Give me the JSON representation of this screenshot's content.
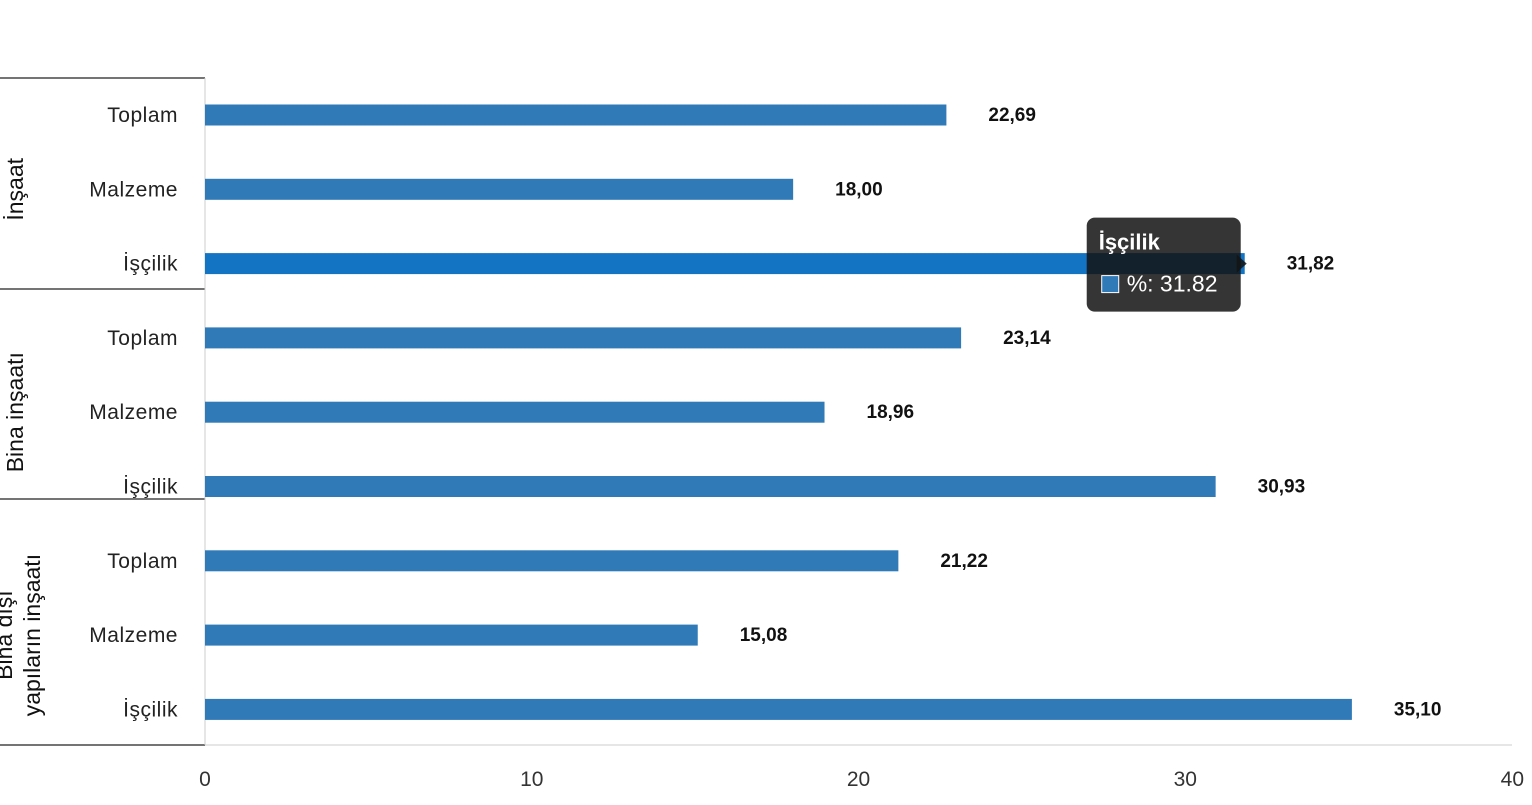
{
  "chart_data": {
    "type": "bar",
    "orientation": "horizontal",
    "xlim": [
      0,
      40
    ],
    "xticks": [
      0,
      10,
      20,
      30,
      40
    ],
    "grid": false,
    "legend": "none",
    "bar_color": "#2f7ab7",
    "highlight_color": "#1474c4",
    "groups": [
      {
        "name": "İnşaat",
        "categories": [
          "Toplam",
          "Malzeme",
          "İşçilik"
        ],
        "values": [
          22.69,
          18.0,
          31.82
        ],
        "labels": [
          "22,69",
          "18,00",
          "31,82"
        ]
      },
      {
        "name": "Bina inşaatı",
        "categories": [
          "Toplam",
          "Malzeme",
          "İşçilik"
        ],
        "values": [
          23.14,
          18.96,
          30.93
        ],
        "labels": [
          "23,14",
          "18,96",
          "30,93"
        ]
      },
      {
        "name": "Bina dışı yapıların inşaatı",
        "name_lines": [
          "Bina dışı",
          "yapıların inşaatı"
        ],
        "categories": [
          "Toplam",
          "Malzeme",
          "İşçilik"
        ],
        "values": [
          21.22,
          15.08,
          35.1
        ],
        "labels": [
          "21,22",
          "15,08",
          "35,10"
        ]
      }
    ],
    "tooltip": {
      "title": "İşçilik",
      "value_text": "%: 31.82",
      "group_index": 0,
      "bar_index": 2
    }
  }
}
